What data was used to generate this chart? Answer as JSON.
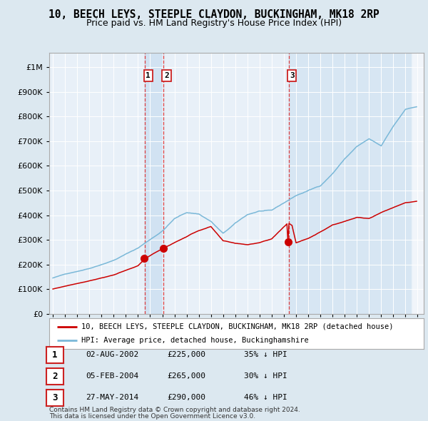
{
  "title": "10, BEECH LEYS, STEEPLE CLAYDON, BUCKINGHAM, MK18 2RP",
  "subtitle": "Price paid vs. HM Land Registry's House Price Index (HPI)",
  "title_fontsize": 10.5,
  "subtitle_fontsize": 9,
  "ytick_values": [
    0,
    100000,
    200000,
    300000,
    400000,
    500000,
    600000,
    700000,
    800000,
    900000,
    1000000
  ],
  "ylim": [
    0,
    1060000
  ],
  "hpi_color": "#7ab8d8",
  "property_color": "#cc0000",
  "fig_bg": "#dce8f0",
  "plot_bg": "#e8f0f8",
  "sales": [
    {
      "date_num": 2002.58,
      "price": 225000,
      "label": "1"
    },
    {
      "date_num": 2004.09,
      "price": 265000,
      "label": "2"
    },
    {
      "date_num": 2014.4,
      "price": 290000,
      "label": "3"
    }
  ],
  "sale_dates_str": [
    "02-AUG-2002",
    "05-FEB-2004",
    "27-MAY-2014"
  ],
  "sale_prices_str": [
    "£225,000",
    "£265,000",
    "£290,000"
  ],
  "sale_hpi_str": [
    "35% ↓ HPI",
    "30% ↓ HPI",
    "46% ↓ HPI"
  ],
  "legend_property": "10, BEECH LEYS, STEEPLE CLAYDON, BUCKINGHAM, MK18 2RP (detached house)",
  "legend_hpi": "HPI: Average price, detached house, Buckinghamshire",
  "footer1": "Contains HM Land Registry data © Crown copyright and database right 2024.",
  "footer2": "This data is licensed under the Open Government Licence v3.0.",
  "xlim_left": 1994.7,
  "xlim_right": 2025.5
}
